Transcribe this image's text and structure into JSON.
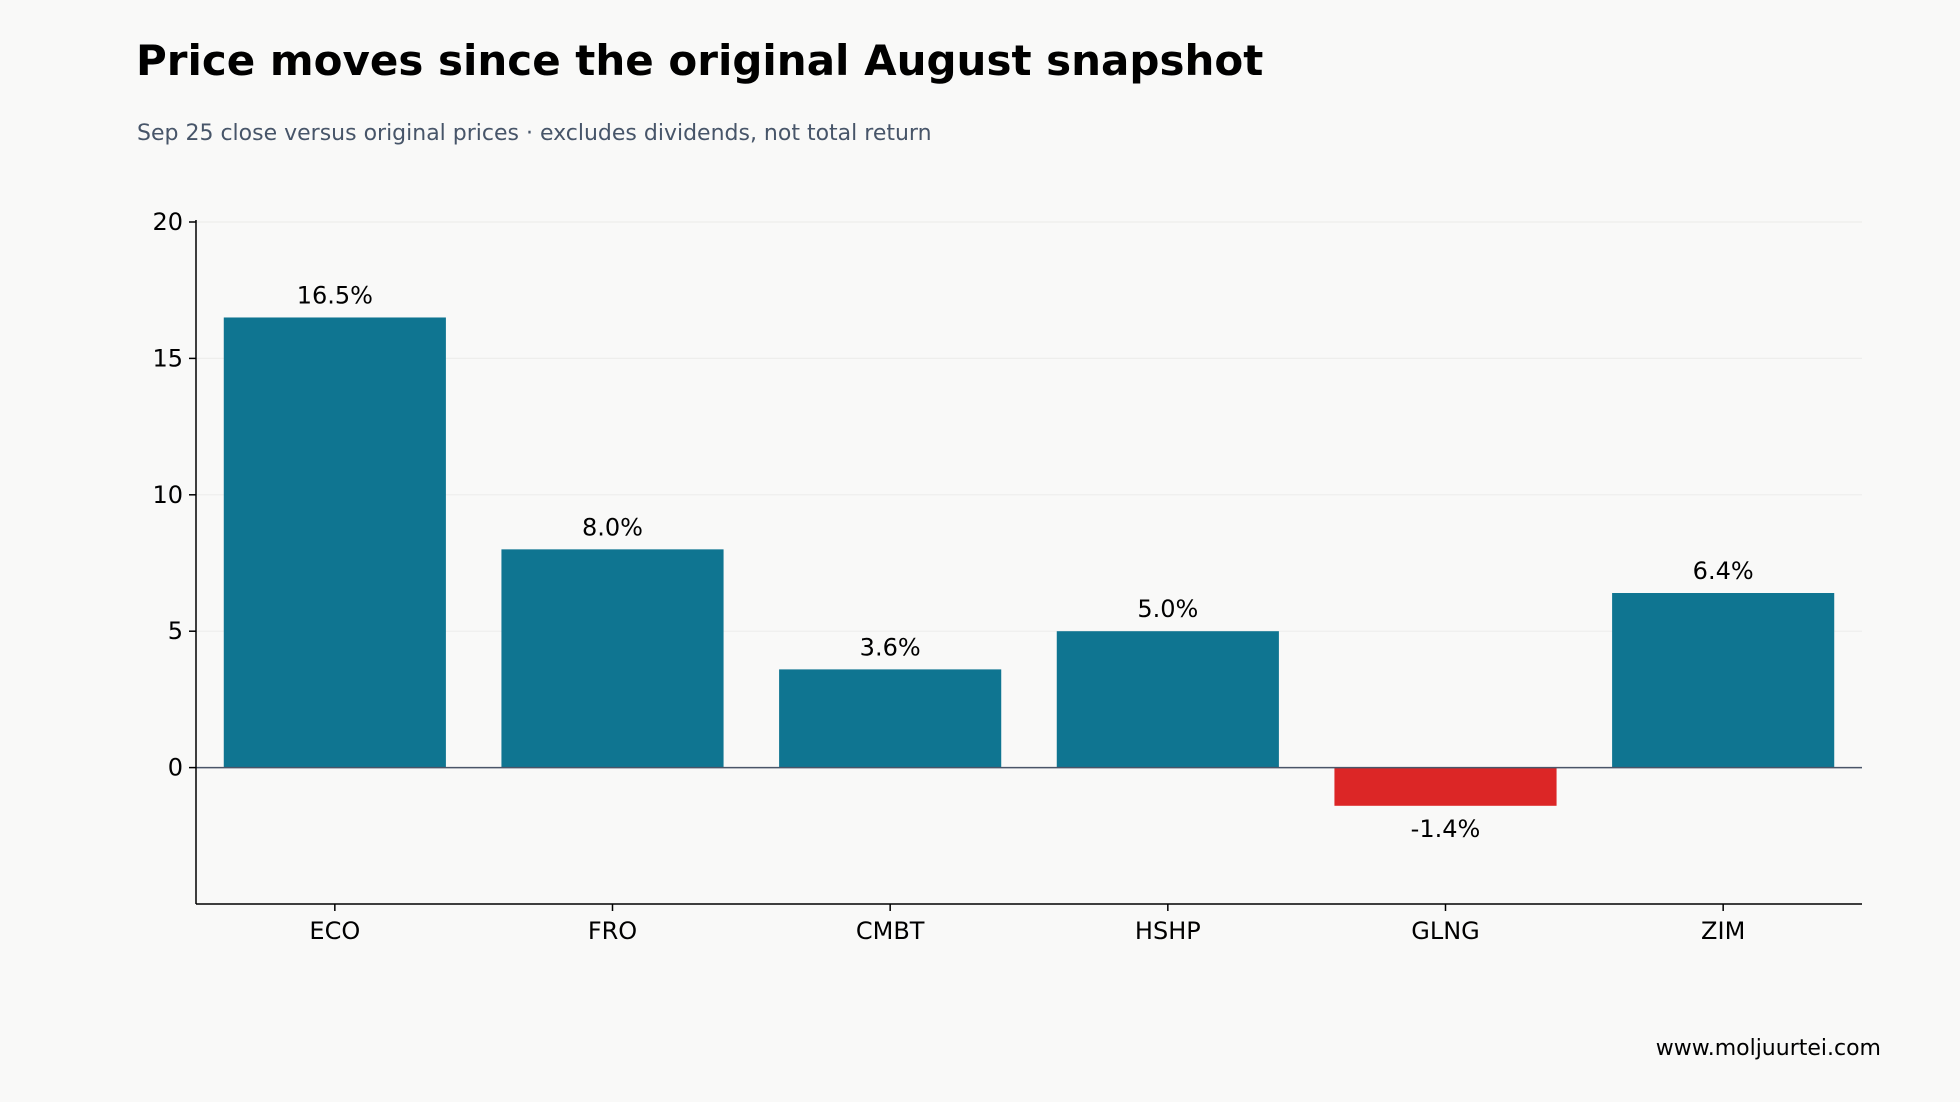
{
  "title": "Price moves since the original August snapshot",
  "subtitle": "Sep 25 close versus original prices · excludes dividends, not total return",
  "footer": "www.moljuurtei.com",
  "colors": {
    "positive": "#0f7591",
    "negative": "#dc2626",
    "background": "#f9f9f8",
    "grid": "#eeeeec",
    "axis": "#000000",
    "zero_line": "#4a5568"
  },
  "chart_data": {
    "type": "bar",
    "categories": [
      "ECO",
      "FRO",
      "CMBT",
      "HSHP",
      "GLNG",
      "ZIM"
    ],
    "values": [
      16.5,
      8.0,
      3.6,
      5.0,
      -1.4,
      6.4
    ],
    "data_labels": [
      "16.5%",
      "8.0%",
      "3.6%",
      "5.0%",
      "-1.4%",
      "6.4%"
    ],
    "ylim": [
      -5,
      20
    ],
    "yticks": [
      0,
      5,
      10,
      15,
      20
    ],
    "ytick_labels": [
      "0",
      "5",
      "10",
      "15",
      "20"
    ],
    "grid": true,
    "xlabel": "",
    "ylabel": ""
  }
}
